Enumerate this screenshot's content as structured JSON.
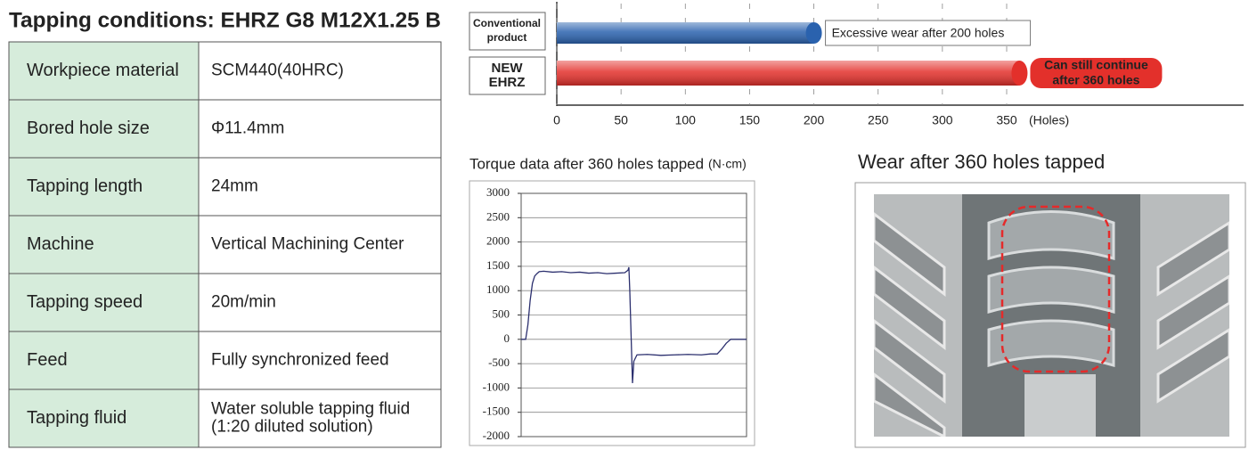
{
  "title": "Tapping conditions: EHRZ G8 M12X1.25 B",
  "table": {
    "rows": [
      [
        "Workpiece material",
        "SCM440(40HRC)"
      ],
      [
        "Bored hole size",
        "Φ11.4mm"
      ],
      [
        "Tapping length",
        "24mm"
      ],
      [
        "Machine",
        "Vertical Machining Center"
      ],
      [
        "Tapping speed",
        "20m/min"
      ],
      [
        "Feed",
        "Fully synchronized feed"
      ],
      [
        "Tapping fluid",
        [
          "Water soluble tapping fluid",
          "(1:20 diluted solution)"
        ]
      ]
    ]
  },
  "chart_data": [
    {
      "type": "hbar",
      "categories": [
        [
          "Conventional",
          "product"
        ],
        [
          "NEW",
          "EHRZ"
        ]
      ],
      "values": [
        200,
        360
      ],
      "colors": [
        "#2a62ae",
        "#e3302b"
      ],
      "annotations": [
        [
          "Excessive wear after 200 holes"
        ],
        [
          "Can still continue",
          "after 360 holes"
        ]
      ],
      "xlabel": "(Holes)",
      "xlim": [
        0,
        350
      ],
      "xticks": [
        0,
        50,
        100,
        150,
        200,
        250,
        300,
        350
      ]
    },
    {
      "type": "line",
      "title": "Torque data after 360 holes tapped",
      "unit": "(N·cm)",
      "x": [
        0,
        2,
        3,
        4,
        5,
        6,
        7,
        8,
        10,
        14,
        18,
        22,
        26,
        30,
        34,
        38,
        42,
        46,
        47.4,
        47.8,
        48.2,
        49.4,
        50,
        51.4,
        56,
        62,
        68,
        74,
        80,
        84,
        87,
        89,
        91,
        93,
        96,
        100
      ],
      "series": [
        {
          "color": "#2b2f6e",
          "values": [
            0,
            0,
            300,
            800,
            1150,
            1300,
            1350,
            1390,
            1400,
            1380,
            1390,
            1370,
            1380,
            1360,
            1370,
            1350,
            1360,
            1370,
            1420,
            1480,
            1000,
            -900,
            -450,
            -320,
            -310,
            -330,
            -320,
            -310,
            -320,
            -300,
            -300,
            -200,
            -80,
            0,
            0,
            0
          ]
        }
      ],
      "xlim": [
        0,
        100
      ],
      "ylim": [
        -2000,
        3000
      ],
      "yticks": [
        -2000,
        -1500,
        -1000,
        -500,
        0,
        500,
        1000,
        1500,
        2000,
        2500,
        3000
      ],
      "grid": true
    }
  ],
  "photo": {
    "title": "Wear after 360 holes tapped"
  }
}
